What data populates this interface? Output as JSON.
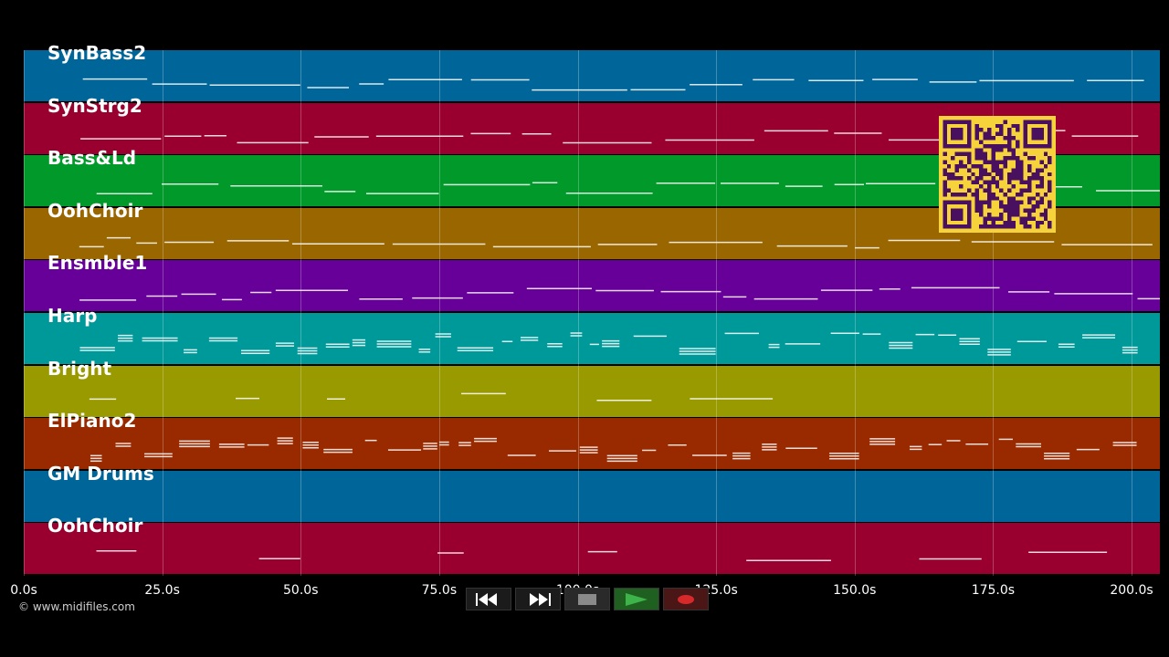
{
  "tracks": [
    {
      "name": "SynBass2",
      "color": "#00669A"
    },
    {
      "name": "SynStrg2",
      "color": "#99002F"
    },
    {
      "name": "Bass&Ld",
      "color": "#00992A"
    },
    {
      "name": "OohChoir",
      "color": "#996600"
    },
    {
      "name": "Ensmble1",
      "color": "#660099"
    },
    {
      "name": "Harp",
      "color": "#00999A"
    },
    {
      "name": "Bright",
      "color": "#999900"
    },
    {
      "name": "ElPiano2",
      "color": "#992A00"
    },
    {
      "name": "GM Drums",
      "color": "#00669A"
    },
    {
      "name": "OohChoir",
      "color": "#99002F"
    }
  ],
  "timeline": {
    "ticks": [
      "0.0s",
      "25.0s",
      "50.0s",
      "75.0s",
      "100.0s",
      "125.0s",
      "150.0s",
      "175.0s",
      "200.0s"
    ],
    "tick_seconds": [
      0,
      25,
      50,
      75,
      100,
      125,
      150,
      175,
      200
    ],
    "max_seconds": 205
  },
  "copyright": "© www.midifiles.com",
  "transport": {
    "rewind_icon": "rewind-icon",
    "fast_forward_icon": "fast-forward-icon",
    "stop_icon": "stop-icon",
    "play_icon": "play-icon",
    "record_icon": "record-icon"
  },
  "qr_colors": {
    "fg": "#4a1060",
    "bg": "#f6d33a"
  }
}
